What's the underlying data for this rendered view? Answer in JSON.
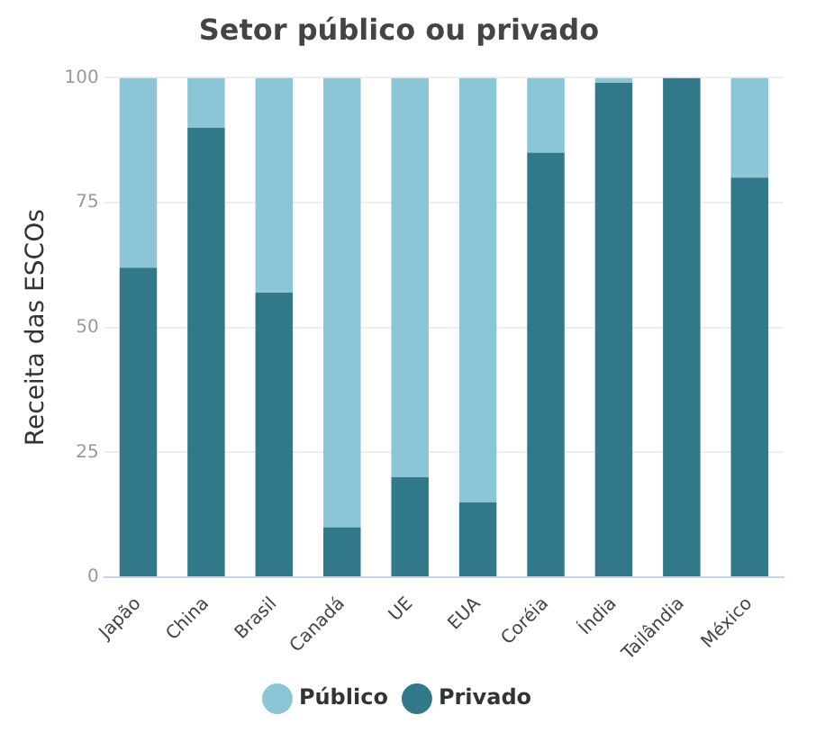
{
  "chart_data": {
    "type": "bar",
    "title": "Setor público ou privado",
    "ylabel": "Receita das ESCOs",
    "categories": [
      "Japão",
      "China",
      "Brasil",
      "Canadá",
      "UE",
      "EUA",
      "Coréia",
      "Índia",
      "Tailândia",
      "México"
    ],
    "stacked": true,
    "series": [
      {
        "name": "Privado",
        "color": "#31798a",
        "values": [
          62,
          90,
          57,
          10,
          20,
          15,
          85,
          99,
          100,
          80
        ]
      },
      {
        "name": "Público",
        "color": "#8cc6d6",
        "values": [
          38,
          10,
          43,
          90,
          80,
          85,
          15,
          1,
          0,
          20
        ]
      }
    ],
    "ylim": [
      0,
      100
    ],
    "yticks": [
      0,
      25,
      50,
      75,
      100
    ],
    "grid": "y",
    "legend": "bottom"
  }
}
